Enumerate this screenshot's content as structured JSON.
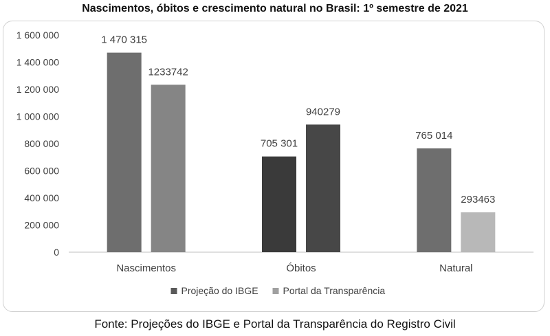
{
  "source_note": "Fonte: Projeções do IBGE e Portal da Transparência do Registro Civil",
  "chart_data": {
    "type": "bar",
    "title": "Nascimentos, óbitos e crescimento natural no Brasil: 1º semestre de 2021",
    "categories": [
      "Nascimentos",
      "Óbitos",
      "Natural"
    ],
    "series": [
      {
        "name": "Projeção do IBGE",
        "values": [
          1470315,
          705301,
          765014
        ],
        "labels": [
          "1 470 315",
          "705 301",
          "765 014"
        ],
        "colors": [
          "#6e6e6e",
          "#3a3a3a",
          "#6e6e6e"
        ],
        "legend_color": "#5a5a5a"
      },
      {
        "name": "Portal da Transparência",
        "values": [
          1233742,
          940279,
          293463
        ],
        "labels": [
          "1233742",
          "940279",
          "293463"
        ],
        "colors": [
          "#858585",
          "#474747",
          "#b8b8b8"
        ],
        "legend_color": "#a0a0a0"
      }
    ],
    "yticks": [
      0,
      200000,
      400000,
      600000,
      800000,
      1000000,
      1200000,
      1400000,
      1600000
    ],
    "ytick_labels": [
      "0",
      "200 000",
      "400 000",
      "600 000",
      "800 000",
      "1 000 000",
      "1 200 000",
      "1 400 000",
      "1 600 000"
    ],
    "ylim": [
      0,
      1600000
    ],
    "grid": false,
    "legend_position": "bottom"
  }
}
